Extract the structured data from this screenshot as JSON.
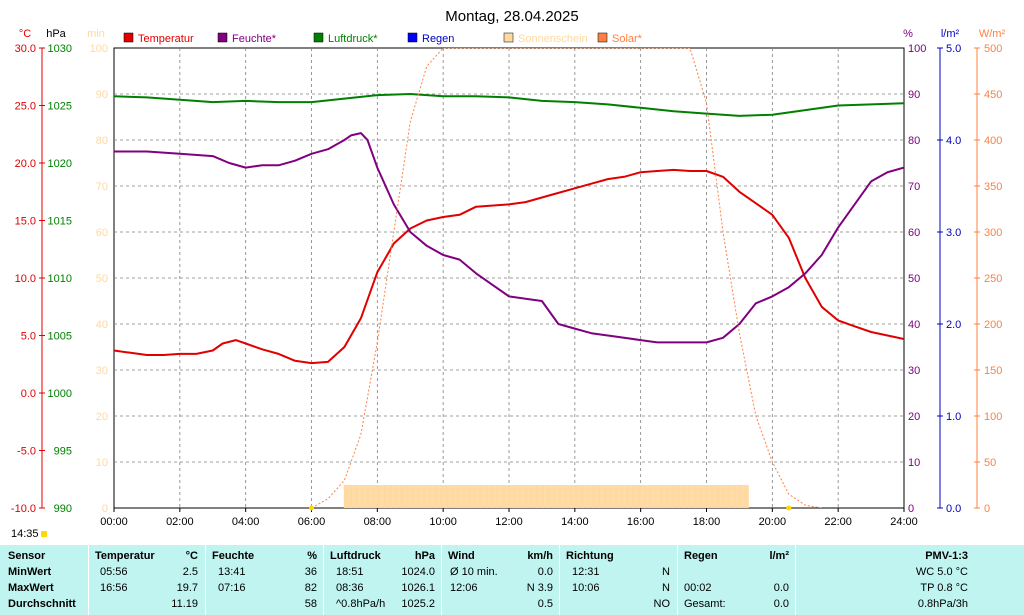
{
  "chart_data": {
    "type": "line",
    "title": "Montag, 28.04.2025",
    "x_ticks": [
      "00:00",
      "02:00",
      "04:00",
      "06:00",
      "08:00",
      "10:00",
      "12:00",
      "14:00",
      "16:00",
      "18:00",
      "20:00",
      "22:00",
      "24:00"
    ],
    "axes": {
      "temp": {
        "unit": "°C",
        "range": [
          -10,
          30
        ],
        "ticks": [
          "30.0",
          "25.0",
          "20.0",
          "15.0",
          "10.0",
          "5.0",
          "0.0",
          "-5.0",
          "-10.0"
        ],
        "color": "#e00000"
      },
      "press": {
        "unit": "hPa",
        "range": [
          990,
          1030
        ],
        "ticks": [
          "1030",
          "1025",
          "1020",
          "1015",
          "1010",
          "1005",
          "1000",
          "995",
          "990"
        ],
        "color": "#008000"
      },
      "sun": {
        "unit": "min",
        "range": [
          0,
          100
        ],
        "ticks": [
          "100",
          "90",
          "80",
          "70",
          "60",
          "50",
          "40",
          "30",
          "20",
          "10",
          "0"
        ],
        "color": "#ffd9a0"
      },
      "hum": {
        "unit": "%",
        "range": [
          0,
          100
        ],
        "ticks": [
          "100",
          "90",
          "80",
          "70",
          "60",
          "50",
          "40",
          "30",
          "20",
          "10",
          "0"
        ],
        "color": "#800080"
      },
      "rain": {
        "unit": "l/m²",
        "range": [
          0,
          5
        ],
        "ticks": [
          "5.0",
          "4.0",
          "3.0",
          "2.0",
          "1.0",
          "0.0"
        ],
        "color": "#0000c0"
      },
      "solar": {
        "unit": "W/m²",
        "range": [
          0,
          500
        ],
        "ticks": [
          "500",
          "450",
          "400",
          "350",
          "300",
          "250",
          "200",
          "150",
          "100",
          "50",
          "0"
        ],
        "color": "#ff8040"
      }
    },
    "legend": [
      {
        "name": "Temperatur",
        "color": "#e00000"
      },
      {
        "name": "Feuchte*",
        "color": "#800080"
      },
      {
        "name": "Luftdruck*",
        "color": "#008000"
      },
      {
        "name": "Regen",
        "color": "#0000ff"
      },
      {
        "name": "Sonnenschein",
        "color": "#ffd9a0"
      },
      {
        "name": "Solar*",
        "color": "#ff8040"
      }
    ],
    "series": [
      {
        "name": "Temperatur",
        "axis": "temp",
        "color": "#e00000",
        "x": [
          0,
          0.5,
          1,
          1.5,
          2,
          2.5,
          3,
          3.3,
          3.7,
          4,
          4.5,
          5,
          5.5,
          6,
          6.5,
          7,
          7.5,
          8,
          8.5,
          9,
          9.5,
          10,
          10.5,
          11,
          12,
          12.5,
          13,
          13.5,
          14,
          14.5,
          15,
          15.5,
          16,
          16.5,
          17,
          17.5,
          18,
          18.5,
          19,
          19.5,
          20,
          20.5,
          21,
          21.5,
          22,
          22.5,
          23,
          23.5,
          24
        ],
        "y": [
          3.7,
          3.5,
          3.3,
          3.3,
          3.4,
          3.4,
          3.7,
          4.3,
          4.6,
          4.3,
          3.8,
          3.4,
          2.8,
          2.6,
          2.7,
          4.0,
          6.5,
          10.5,
          13.0,
          14.3,
          15.0,
          15.3,
          15.5,
          16.2,
          16.4,
          16.6,
          17.0,
          17.4,
          17.8,
          18.2,
          18.6,
          18.8,
          19.2,
          19.3,
          19.4,
          19.3,
          19.3,
          18.8,
          17.5,
          16.5,
          15.5,
          13.5,
          10.0,
          7.5,
          6.3,
          5.8,
          5.3,
          5.0,
          4.7
        ]
      },
      {
        "name": "Feuchte*",
        "axis": "hum",
        "color": "#800080",
        "x": [
          0,
          1,
          2,
          3,
          3.5,
          4,
          4.5,
          5,
          5.5,
          6,
          6.5,
          7,
          7.2,
          7.5,
          7.7,
          8,
          8.5,
          9,
          9.5,
          10,
          10.5,
          11,
          12,
          12.5,
          13,
          13.5,
          14,
          14.5,
          15,
          15.5,
          16,
          16.5,
          17,
          17.5,
          18,
          18.5,
          19,
          19.5,
          20,
          20.5,
          21,
          21.5,
          22,
          22.5,
          23,
          23.5,
          24
        ],
        "y": [
          77.5,
          77.5,
          77,
          76.5,
          75,
          74,
          74.5,
          74.5,
          75.5,
          77,
          78,
          80,
          81,
          81.5,
          80,
          74,
          66,
          60,
          57,
          55,
          54,
          51,
          46,
          45.5,
          45,
          40,
          39,
          38,
          37.5,
          37,
          36.5,
          36,
          36,
          36,
          36,
          37,
          40,
          44.5,
          46,
          48,
          51,
          55,
          61,
          66,
          71,
          73,
          74
        ]
      },
      {
        "name": "Luftdruck*",
        "axis": "press",
        "color": "#008000",
        "x": [
          0,
          1,
          2,
          3,
          4,
          5,
          6,
          7,
          8,
          9,
          10,
          11,
          12,
          13,
          14,
          15,
          16,
          17,
          18,
          19,
          20,
          21,
          22,
          23,
          24
        ],
        "y": [
          1025.8,
          1025.7,
          1025.5,
          1025.3,
          1025.4,
          1025.3,
          1025.3,
          1025.6,
          1025.9,
          1026.0,
          1025.8,
          1025.8,
          1025.7,
          1025.4,
          1025.3,
          1025.1,
          1024.8,
          1024.5,
          1024.3,
          1024.1,
          1024.2,
          1024.6,
          1025.0,
          1025.1,
          1025.2
        ]
      },
      {
        "name": "Solar*",
        "axis": "solar",
        "color": "#ff8040",
        "dashed": true,
        "x": [
          6,
          6.5,
          7,
          7.5,
          8,
          8.5,
          9,
          9.5,
          10,
          17.5,
          18,
          18.5,
          19,
          19.5,
          20,
          20.5,
          21,
          21.5
        ],
        "y": [
          0,
          10,
          30,
          80,
          180,
          300,
          420,
          480,
          500,
          500,
          440,
          300,
          190,
          100,
          50,
          15,
          3,
          0
        ]
      }
    ],
    "sunshine_bars": {
      "start": 7.0,
      "end": 19.3,
      "value_min": 5,
      "color": "#ffd9a0"
    }
  },
  "footer": {
    "time": "14:35"
  },
  "stats": {
    "headers": {
      "sensor": "Sensor",
      "temp": "Temperatur",
      "temp_unit": "°C",
      "hum": "Feuchte",
      "hum_unit": "%",
      "press": "Luftdruck",
      "press_unit": "hPa",
      "wind": "Wind",
      "wind_unit": "km/h",
      "dir": "Richtung",
      "rain": "Regen",
      "rain_unit": "l/m²",
      "pmv": "PMV-1:3"
    },
    "rows": [
      {
        "label": "MinWert",
        "temp_time": "05:56",
        "temp_val": "2.5",
        "hum_time": "13:41",
        "hum_val": "36",
        "press_time": "18:51",
        "press_val": "1024.0",
        "wind_time": "Ø 10 min.",
        "wind_val": "0.0",
        "dir_time": "12:31",
        "dir_val": "N",
        "rain_time": "",
        "rain_val": "",
        "pmv": "WC 5.0 °C"
      },
      {
        "label": "MaxWert",
        "temp_time": "16:56",
        "temp_val": "19.7",
        "hum_time": "07:16",
        "hum_val": "82",
        "press_time": "08:36",
        "press_val": "1026.1",
        "wind_time": "12:06",
        "wind_val": "N 3.9",
        "dir_time": "10:06",
        "dir_val": "N",
        "rain_time": "00:02",
        "rain_val": "0.0",
        "pmv": "TP 0.8 °C"
      },
      {
        "label": "Durchschnitt",
        "temp_time": "",
        "temp_val": "11.19",
        "hum_time": "",
        "hum_val": "58",
        "press_time": "^0.8hPa/h",
        "press_val": "1025.2",
        "wind_time": "",
        "wind_val": "0.5",
        "dir_time": "",
        "dir_val": "NO",
        "rain_time": "Gesamt:",
        "rain_val": "0.0",
        "pmv": "0.8hPa/3h"
      }
    ]
  }
}
